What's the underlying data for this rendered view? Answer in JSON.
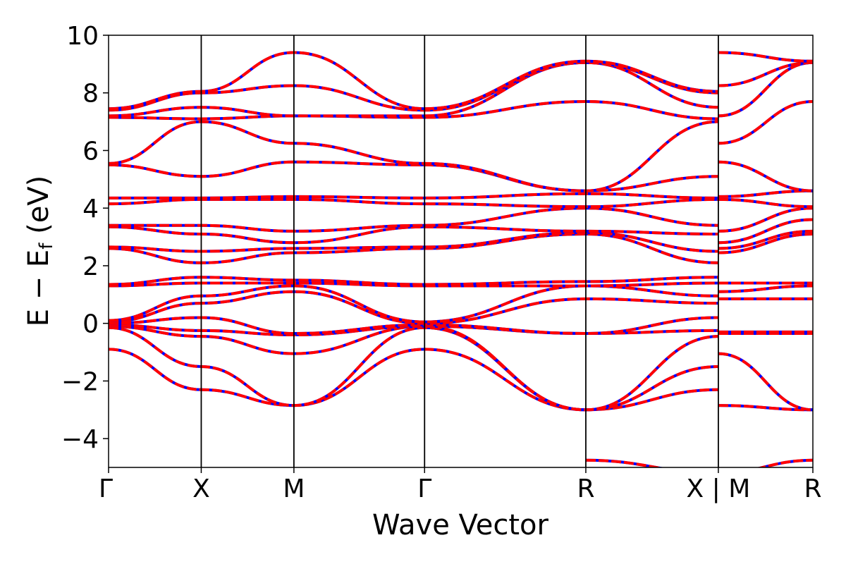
{
  "chart_data": {
    "type": "line",
    "xlabel": "Wave Vector",
    "ylabel": "E − E_f (eV)",
    "ylabel_main": "E − E",
    "ylabel_sub": "f",
    "ylabel_unit": " (eV)",
    "ylim": [
      -5,
      10
    ],
    "yticks": [
      -4,
      -2,
      0,
      2,
      4,
      6,
      8,
      10
    ],
    "ytick_labels": [
      "−4",
      "−2",
      "0",
      "2",
      "4",
      "6",
      "8",
      "10"
    ],
    "xlim": [
      0,
      7.6
    ],
    "kpoints": [
      {
        "label": "Γ",
        "x": 0.0
      },
      {
        "label": "X",
        "x": 1.0
      },
      {
        "label": "M",
        "x": 2.0
      },
      {
        "label": "Γ",
        "x": 3.41
      },
      {
        "label": "R",
        "x": 5.15
      },
      {
        "label": "X | M",
        "x": 6.58
      },
      {
        "label": "R",
        "x": 7.6
      }
    ],
    "grid": false,
    "legend": "none",
    "colors": {
      "band_dashed": "#ff0000",
      "band_solid": "#0000ff",
      "axes": "#000000"
    },
    "segments": [
      {
        "x": [
          0.0,
          1.0,
          2.0,
          3.41,
          5.15,
          6.58
        ],
        "bands": [
          [
            -0.9,
            -2.3,
            -2.85,
            -0.9,
            -3.0,
            -2.3
          ],
          [
            -0.15,
            -1.5,
            -2.85,
            -0.15,
            -3.0,
            -1.5
          ],
          [
            -0.1,
            -0.45,
            -1.05,
            -0.1,
            -3.0,
            -0.45
          ],
          [
            -0.05,
            -0.25,
            -0.4,
            -0.1,
            -0.35,
            -0.25
          ],
          [
            0.0,
            0.2,
            -0.35,
            -0.05,
            -0.35,
            0.2
          ],
          [
            0.05,
            0.7,
            1.1,
            0.0,
            0.85,
            0.7
          ],
          [
            0.1,
            0.95,
            1.3,
            0.05,
            1.3,
            0.95
          ],
          [
            1.3,
            1.4,
            1.4,
            1.3,
            1.3,
            1.4
          ],
          [
            1.35,
            1.6,
            1.5,
            1.35,
            1.45,
            1.6
          ],
          [
            2.6,
            2.1,
            2.45,
            2.6,
            3.1,
            2.1
          ],
          [
            2.65,
            2.5,
            2.6,
            2.65,
            3.15,
            2.5
          ],
          [
            3.35,
            3.1,
            2.8,
            3.35,
            3.2,
            3.1
          ],
          [
            3.4,
            3.4,
            3.2,
            3.4,
            4.0,
            3.4
          ],
          [
            4.15,
            4.3,
            4.3,
            4.15,
            4.05,
            4.3
          ],
          [
            4.35,
            4.35,
            4.4,
            4.35,
            4.5,
            4.35
          ],
          [
            5.5,
            5.1,
            5.6,
            5.5,
            4.6,
            5.1
          ],
          [
            5.55,
            7.0,
            6.25,
            5.55,
            4.6,
            7.0
          ],
          [
            7.15,
            7.1,
            7.2,
            7.15,
            7.7,
            7.1
          ],
          [
            7.2,
            7.5,
            7.2,
            7.2,
            9.05,
            7.5
          ],
          [
            7.4,
            8.0,
            8.25,
            7.4,
            9.05,
            8.0
          ],
          [
            7.45,
            8.05,
            9.4,
            7.45,
            9.1,
            8.05
          ]
        ]
      },
      {
        "x": [
          6.58,
          7.6
        ],
        "bands": [
          [
            -2.85,
            -3.0
          ],
          [
            -1.05,
            -3.0
          ],
          [
            -0.35,
            -0.35
          ],
          [
            -0.3,
            -0.3
          ],
          [
            0.85,
            0.85
          ],
          [
            1.1,
            1.3
          ],
          [
            1.4,
            1.4
          ],
          [
            2.45,
            3.1
          ],
          [
            2.6,
            3.2
          ],
          [
            2.8,
            3.6
          ],
          [
            3.2,
            4.0
          ],
          [
            4.3,
            4.05
          ],
          [
            4.4,
            4.6
          ],
          [
            5.6,
            4.6
          ],
          [
            6.25,
            7.7
          ],
          [
            7.2,
            9.05
          ],
          [
            8.25,
            9.05
          ],
          [
            9.4,
            9.1
          ]
        ]
      },
      {
        "x": [
          5.15,
          6.58
        ],
        "bands": [
          [
            -4.75,
            -5.2
          ]
        ]
      },
      {
        "x": [
          6.58,
          7.6
        ],
        "bands": [
          [
            -5.2,
            -4.75
          ]
        ]
      }
    ]
  }
}
